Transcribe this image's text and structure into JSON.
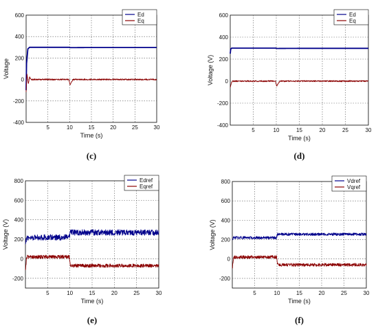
{
  "chart_data": [
    {
      "type": "line",
      "caption": "(c)",
      "xlabel": "Time (s)",
      "ylabel": "Voltage",
      "xlim": [
        0,
        30
      ],
      "ylim": [
        -400,
        600
      ],
      "xticks": [
        5,
        10,
        15,
        20,
        25,
        30
      ],
      "yticks": [
        -400,
        -200,
        0,
        200,
        400,
        600
      ],
      "grid": true,
      "legend_position": "top-right",
      "series": [
        {
          "name": "Ed",
          "color": "#00008b",
          "noise": 0,
          "x": [
            0,
            0.1,
            0.4,
            0.8,
            1.5,
            3,
            9.9,
            10.1,
            15,
            30
          ],
          "y": [
            -100,
            150,
            285,
            300,
            300,
            300,
            300,
            297,
            298,
            298
          ]
        },
        {
          "name": "Eq",
          "color": "#8b0000",
          "noise": 6,
          "x": [
            0,
            0.2,
            0.5,
            0.8,
            1.2,
            2,
            9.8,
            10.1,
            10.4,
            10.8,
            30
          ],
          "y": [
            -120,
            50,
            -40,
            20,
            0,
            0,
            0,
            -50,
            -25,
            0,
            0
          ]
        }
      ]
    },
    {
      "type": "line",
      "caption": "(d)",
      "xlabel": "Time (s)",
      "ylabel": "Voltage (V)",
      "xlim": [
        0,
        30
      ],
      "ylim": [
        -400,
        600
      ],
      "xticks": [
        5,
        10,
        15,
        20,
        25,
        30
      ],
      "yticks": [
        -400,
        -200,
        0,
        200,
        400,
        600
      ],
      "grid": true,
      "legend_position": "top-right",
      "series": [
        {
          "name": "Ed",
          "color": "#00008b",
          "noise": 0,
          "x": [
            0,
            0.1,
            0.3,
            0.6,
            1,
            9.9,
            10.1,
            15,
            30
          ],
          "y": [
            250,
            290,
            300,
            300,
            300,
            300,
            297,
            298,
            298
          ]
        },
        {
          "name": "Eq",
          "color": "#8b0000",
          "noise": 6,
          "x": [
            0,
            0.2,
            0.5,
            1,
            9.8,
            10.1,
            10.4,
            10.8,
            30
          ],
          "y": [
            -60,
            -20,
            0,
            0,
            0,
            -50,
            -25,
            0,
            0
          ]
        }
      ]
    },
    {
      "type": "line",
      "caption": "(e)",
      "xlabel": "Time (s)",
      "ylabel": "Voltage (V)",
      "xlim": [
        0,
        30
      ],
      "ylim": [
        -300,
        800
      ],
      "xticks": [
        5,
        10,
        15,
        20,
        25,
        30
      ],
      "yticks": [
        -200,
        0,
        200,
        400,
        600,
        800
      ],
      "grid": true,
      "legend_position": "top-right",
      "series": [
        {
          "name": "Edref",
          "color": "#00008b",
          "noise": 30,
          "x": [
            0,
            0.3,
            9.9,
            10.1,
            30
          ],
          "y": [
            140,
            220,
            220,
            270,
            270
          ]
        },
        {
          "name": "Eqref",
          "color": "#8b0000",
          "noise": 18,
          "x": [
            0,
            0.3,
            9.9,
            10.1,
            30
          ],
          "y": [
            -120,
            20,
            20,
            -70,
            -70
          ]
        }
      ]
    },
    {
      "type": "line",
      "caption": "(f)",
      "xlabel": "Time (s)",
      "ylabel": "Voltage (V)",
      "xlim": [
        0,
        30
      ],
      "ylim": [
        -300,
        800
      ],
      "xticks": [
        5,
        10,
        15,
        20,
        25,
        30
      ],
      "yticks": [
        -200,
        0,
        200,
        400,
        600,
        800
      ],
      "grid": true,
      "legend_position": "top-right",
      "series": [
        {
          "name": "Vdref",
          "color": "#00008b",
          "noise": 14,
          "x": [
            0,
            0.3,
            9.9,
            10.1,
            30
          ],
          "y": [
            200,
            220,
            220,
            255,
            255
          ]
        },
        {
          "name": "Vqref",
          "color": "#8b0000",
          "noise": 16,
          "x": [
            0,
            0.3,
            9.9,
            10.1,
            30
          ],
          "y": [
            -100,
            20,
            20,
            -60,
            -60
          ]
        }
      ]
    }
  ]
}
